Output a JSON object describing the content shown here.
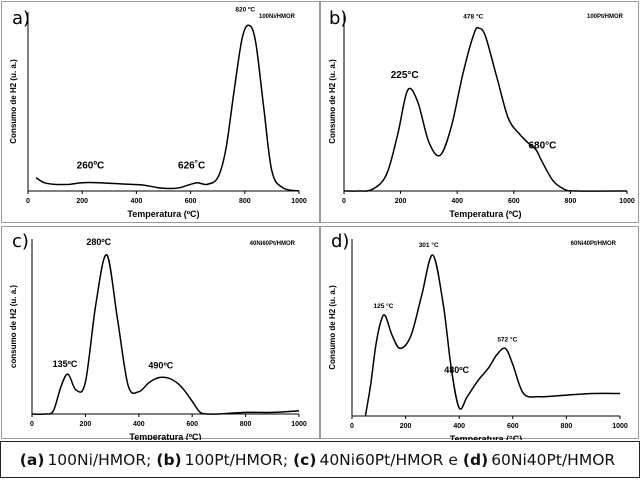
{
  "chart_data": [
    {
      "type": "line",
      "panel_label": "a)",
      "sample": "100Ni/HMOR",
      "xlabel": "Temperatura (ºC)",
      "ylabel": "Consumo de H2 (u. a.)",
      "xlim": [
        0,
        1000
      ],
      "xticks": [
        "0",
        "200",
        "400",
        "600",
        "800",
        "1000"
      ],
      "x": [
        30,
        60,
        100,
        150,
        200,
        260,
        320,
        380,
        430,
        480,
        530,
        560,
        600,
        626,
        660,
        700,
        730,
        760,
        790,
        815,
        840,
        870,
        900,
        940,
        1000
      ],
      "y": [
        0.08,
        0.05,
        0.04,
        0.04,
        0.05,
        0.05,
        0.045,
        0.04,
        0.035,
        0.02,
        0.015,
        0.02,
        0.04,
        0.05,
        0.04,
        0.08,
        0.25,
        0.6,
        0.92,
        1.0,
        0.9,
        0.5,
        0.12,
        0.02,
        0.0
      ],
      "ylim": [
        0,
        1.08
      ],
      "annotations": [
        {
          "text": "260ºC",
          "x": 260,
          "y": 0.05
        },
        {
          "text": "626˚C",
          "x": 626,
          "y": 0.05
        },
        {
          "text": "820 ºC",
          "x": 820,
          "y": 1.0
        }
      ]
    },
    {
      "type": "line",
      "panel_label": "b)",
      "sample": "100Pt/HMOR",
      "xlabel": "Temperatura (ºC)",
      "ylabel": "Consumo de H2 (u. a.)",
      "xlim": [
        0,
        1000
      ],
      "xticks": [
        "0",
        "200",
        "400",
        "600",
        "800",
        "1000"
      ],
      "x": [
        0,
        50,
        100,
        150,
        190,
        225,
        260,
        300,
        340,
        380,
        420,
        460,
        478,
        500,
        540,
        580,
        620,
        660,
        680,
        700,
        740,
        780,
        820,
        1000
      ],
      "y": [
        0.0,
        0.0,
        0.01,
        0.1,
        0.35,
        0.62,
        0.55,
        0.3,
        0.22,
        0.4,
        0.72,
        0.97,
        1.0,
        0.95,
        0.7,
        0.45,
        0.35,
        0.28,
        0.25,
        0.18,
        0.06,
        0.01,
        0.0,
        0.0
      ],
      "ylim": [
        0,
        1.1
      ],
      "annotations": [
        {
          "text": "225°C",
          "x": 225,
          "y": 0.62
        },
        {
          "text": "478 °C",
          "x": 478,
          "y": 1.0
        },
        {
          "text": "680°C",
          "x": 680,
          "y": 0.25
        }
      ]
    },
    {
      "type": "line",
      "panel_label": "c)",
      "sample": "40Ni60Pt/HMOR",
      "xlabel": "Temperatura (ºC)",
      "ylabel": "consumo de H2 (u. a.)",
      "xlim": [
        0,
        1000
      ],
      "xticks": [
        "0",
        "200",
        "400",
        "600",
        "800",
        "1000"
      ],
      "x": [
        0,
        50,
        80,
        110,
        135,
        165,
        200,
        240,
        280,
        320,
        360,
        400,
        440,
        480,
        520,
        560,
        600,
        630,
        660,
        700,
        800,
        900,
        1000
      ],
      "y": [
        0.0,
        0.0,
        0.02,
        0.18,
        0.25,
        0.15,
        0.2,
        0.7,
        1.0,
        0.6,
        0.18,
        0.14,
        0.2,
        0.23,
        0.22,
        0.17,
        0.08,
        0.01,
        0.0,
        0.0,
        0.01,
        0.01,
        0.02
      ],
      "ylim": [
        0,
        1.1
      ],
      "annotations": [
        {
          "text": "135ºC",
          "x": 135,
          "y": 0.25
        },
        {
          "text": "280ºC",
          "x": 280,
          "y": 1.0
        },
        {
          "text": "490ºC",
          "x": 490,
          "y": 0.23
        }
      ]
    },
    {
      "type": "line",
      "panel_label": "d)",
      "sample": "60Ni40Pt/HMOR",
      "xlabel": "Temperatura (°C)",
      "ylabel": "Consumo de H2 (u. a.)",
      "xlim": [
        0,
        1000
      ],
      "xticks": [
        "0",
        "200",
        "400",
        "600",
        "800",
        "1000"
      ],
      "x": [
        50,
        70,
        90,
        110,
        125,
        150,
        180,
        220,
        260,
        301,
        340,
        370,
        400,
        430,
        470,
        510,
        540,
        572,
        600,
        640,
        700,
        800,
        900,
        1000
      ],
      "y": [
        0.0,
        0.2,
        0.45,
        0.6,
        0.62,
        0.5,
        0.42,
        0.5,
        0.75,
        1.0,
        0.7,
        0.3,
        0.05,
        0.12,
        0.22,
        0.3,
        0.38,
        0.42,
        0.32,
        0.14,
        0.12,
        0.13,
        0.14,
        0.14
      ],
      "ylim": [
        0,
        1.1
      ],
      "annotations": [
        {
          "text": "125 °C",
          "x": 125,
          "y": 0.62
        },
        {
          "text": "301 °C",
          "x": 301,
          "y": 1.0
        },
        {
          "text": "480ºC",
          "x": 480,
          "y": 0.25
        },
        {
          "text": "572 °C",
          "x": 572,
          "y": 0.42
        }
      ]
    }
  ],
  "caption": {
    "a_label": "(a)",
    "a_text": "100Ni/HMOR;",
    "b_label": "(b)",
    "b_text": "100Pt/HMOR;",
    "c_label": "(c)",
    "c_text": "40Ni60Pt/HMOR e",
    "d_label": "(d)",
    "d_text": "60Ni40Pt/HMOR"
  },
  "colors": {
    "line": "#000000",
    "panel_border": "#9a9a9a",
    "caption_border": "#222222"
  }
}
